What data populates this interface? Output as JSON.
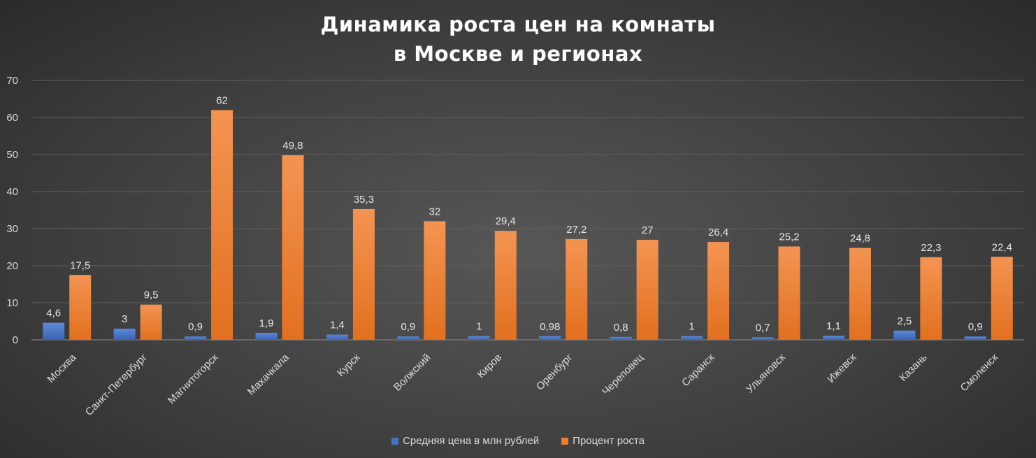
{
  "chart_data": {
    "type": "bar",
    "title_lines": [
      "Динамика роста цен на комнаты",
      "в Москве и регионах"
    ],
    "categories": [
      "Москва",
      "Санкт-Петербург",
      "Магнитогорск",
      "Махачкала",
      "Курск",
      "Волжский",
      "Киров",
      "Оренбург",
      "Череповец",
      "Саранск",
      "Ульяновск",
      "Ижевск",
      "Казань",
      "Смоленск"
    ],
    "series": [
      {
        "name": "Средняя цена в млн рублей",
        "color": "#4472c4",
        "values": [
          4.6,
          3,
          0.9,
          1.9,
          1.4,
          0.9,
          1,
          0.98,
          0.8,
          1,
          0.7,
          1.1,
          2.5,
          0.9
        ],
        "labels": [
          "4,6",
          "3",
          "0,9",
          "1,9",
          "1,4",
          "0,9",
          "1",
          "0,98",
          "0,8",
          "1",
          "0,7",
          "1,1",
          "2,5",
          "0,9"
        ]
      },
      {
        "name": "Процент роста",
        "color": "#ed7d31",
        "values": [
          17.5,
          9.5,
          62,
          49.8,
          35.3,
          32,
          29.4,
          27.2,
          27,
          26.4,
          25.2,
          24.8,
          22.3,
          22.4
        ],
        "labels": [
          "17,5",
          "9,5",
          "62",
          "49,8",
          "35,3",
          "32",
          "29,4",
          "27,2",
          "27",
          "26,4",
          "25,2",
          "24,8",
          "22,3",
          "22,4"
        ]
      }
    ],
    "yticks": [
      "0",
      "10",
      "20",
      "30",
      "40",
      "50",
      "60",
      "70"
    ],
    "ylim": [
      0,
      70
    ],
    "grid": true,
    "legend_position": "bottom"
  }
}
